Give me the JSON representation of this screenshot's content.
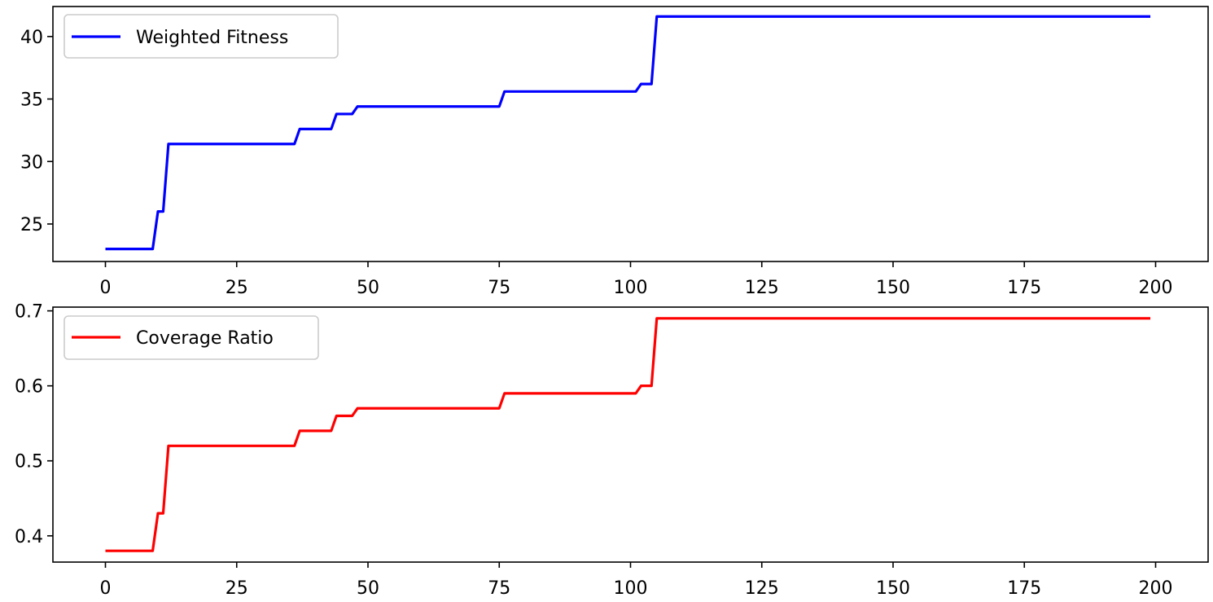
{
  "chart_data": [
    {
      "type": "line",
      "xlim": [
        -10,
        210
      ],
      "ylim": [
        22,
        42.4
      ],
      "xticks": [
        0,
        25,
        50,
        75,
        100,
        125,
        150,
        175,
        200
      ],
      "xtick_labels": [
        "0",
        "25",
        "50",
        "75",
        "100",
        "125",
        "150",
        "175",
        "200"
      ],
      "yticks": [
        25,
        30,
        35,
        40
      ],
      "ytick_labels": [
        "25",
        "30",
        "35",
        "40"
      ],
      "grid": false,
      "legend_position": "top-left",
      "series": [
        {
          "name": "Weighted Fitness",
          "color": "#0000ff",
          "x": [
            0,
            9,
            10,
            11,
            12,
            36,
            37,
            43,
            44,
            47,
            48,
            75,
            76,
            101,
            102,
            104,
            105,
            199
          ],
          "y": [
            23.0,
            23.0,
            26.0,
            26.0,
            31.4,
            31.4,
            32.6,
            32.6,
            33.8,
            33.8,
            34.4,
            34.4,
            35.6,
            35.6,
            36.2,
            36.2,
            41.6,
            41.6
          ]
        }
      ]
    },
    {
      "type": "line",
      "xlim": [
        -10,
        210
      ],
      "ylim": [
        0.365,
        0.705
      ],
      "xticks": [
        0,
        25,
        50,
        75,
        100,
        125,
        150,
        175,
        200
      ],
      "xtick_labels": [
        "0",
        "25",
        "50",
        "75",
        "100",
        "125",
        "150",
        "175",
        "200"
      ],
      "yticks": [
        0.4,
        0.5,
        0.6,
        0.7
      ],
      "ytick_labels": [
        "0.4",
        "0.5",
        "0.6",
        "0.7"
      ],
      "grid": false,
      "legend_position": "top-left",
      "series": [
        {
          "name": "Coverage Ratio",
          "color": "#ff0000",
          "x": [
            0,
            9,
            10,
            11,
            12,
            36,
            37,
            43,
            44,
            47,
            48,
            75,
            76,
            101,
            102,
            104,
            105,
            199
          ],
          "y": [
            0.38,
            0.38,
            0.43,
            0.43,
            0.52,
            0.52,
            0.54,
            0.54,
            0.56,
            0.56,
            0.57,
            0.57,
            0.59,
            0.59,
            0.6,
            0.6,
            0.69,
            0.69
          ]
        }
      ]
    }
  ]
}
